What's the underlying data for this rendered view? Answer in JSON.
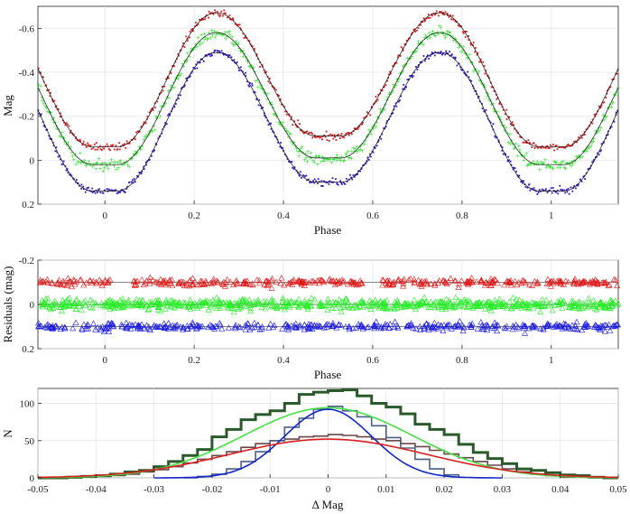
{
  "chart_data": [
    {
      "type": "scatter",
      "panel": "light-curve",
      "xlabel": "Phase",
      "ylabel": "Mag",
      "xlim": [
        -0.15,
        1.15
      ],
      "ylim": [
        0.2,
        -0.7
      ],
      "y_inverted": true,
      "xticks": [
        0,
        0.2,
        0.4,
        0.6,
        0.8,
        1
      ],
      "xtick_labels": [
        "0",
        "0.2",
        "0.4",
        "0.6",
        "0.8",
        "1"
      ],
      "yticks": [
        -0.6,
        -0.4,
        -0.2,
        0,
        0.2
      ],
      "ytick_labels": [
        "-0.6",
        "-0.4",
        "-0.2",
        "0",
        "0.2"
      ],
      "grid": true,
      "model": "eclipsing binary light curve, fitted model drawn as thin black line over each band",
      "series": [
        {
          "name": "red band",
          "color": "#d81818",
          "min_mag": -0.67,
          "primary_min_mag": -0.06,
          "secondary_min_mag": -0.11
        },
        {
          "name": "green band",
          "color": "#22e022",
          "min_mag": -0.58,
          "primary_min_mag": 0.02,
          "secondary_min_mag": -0.01
        },
        {
          "name": "blue band",
          "color": "#3318cc",
          "min_mag": -0.49,
          "primary_min_mag": 0.14,
          "secondary_min_mag": 0.1
        }
      ]
    },
    {
      "type": "scatter",
      "panel": "residuals",
      "xlabel": "Phase",
      "ylabel": "Residuals (mag)",
      "xlim": [
        -0.15,
        1.15
      ],
      "ylim": [
        0.2,
        -0.2
      ],
      "y_inverted": true,
      "xticks": [
        0,
        0.2,
        0.4,
        0.6,
        0.8,
        1
      ],
      "xtick_labels": [
        "0",
        "0.2",
        "0.4",
        "0.6",
        "0.8",
        "1"
      ],
      "yticks": [
        -0.2,
        0,
        0.2
      ],
      "ytick_labels": [
        "-0.2",
        "0",
        "0.2"
      ],
      "grid": true,
      "series": [
        {
          "name": "red residuals",
          "color": "#e01818",
          "offset": -0.1
        },
        {
          "name": "green residuals",
          "color": "#22ee22",
          "offset": 0.0
        },
        {
          "name": "blue residuals",
          "color": "#1a1ae0",
          "offset": 0.1
        }
      ]
    },
    {
      "type": "bar",
      "panel": "residual-histogram",
      "xlabel": "Δ Mag",
      "ylabel": "N",
      "xlim": [
        -0.05,
        0.05
      ],
      "ylim": [
        0,
        120
      ],
      "xticks": [
        -0.05,
        -0.04,
        -0.03,
        -0.02,
        -0.01,
        0,
        0.01,
        0.02,
        0.03,
        0.04,
        0.05
      ],
      "xtick_labels": [
        "-0.05",
        "-0.04",
        "-0.03",
        "-0.02",
        "-0.01",
        "0",
        "0.01",
        "0.02",
        "0.03",
        "0.04",
        "0.05"
      ],
      "yticks": [
        0,
        50,
        100
      ],
      "ytick_labels": [
        "0",
        "50",
        "100"
      ],
      "grid": true,
      "bin_width": 0.0025,
      "histograms": [
        {
          "name": "green band",
          "color": "#2a5a2a",
          "stroke_width": 3,
          "bins": [
            -0.05,
            -0.0475,
            -0.045,
            -0.0425,
            -0.04,
            -0.0375,
            -0.035,
            -0.0325,
            -0.03,
            -0.0275,
            -0.025,
            -0.0225,
            -0.02,
            -0.0175,
            -0.015,
            -0.0125,
            -0.01,
            -0.0075,
            -0.005,
            -0.0025,
            0,
            0.0025,
            0.005,
            0.0075,
            0.01,
            0.0125,
            0.015,
            0.0175,
            0.02,
            0.0225,
            0.025,
            0.0275,
            0.03,
            0.0325,
            0.035,
            0.0375,
            0.04,
            0.0425,
            0.045,
            0.0475
          ],
          "counts": [
            0,
            0,
            1,
            2,
            3,
            5,
            8,
            10,
            15,
            22,
            30,
            38,
            55,
            65,
            78,
            85,
            90,
            100,
            112,
            115,
            117,
            118,
            110,
            100,
            95,
            86,
            72,
            65,
            58,
            45,
            34,
            26,
            19,
            12,
            10,
            7,
            4,
            3,
            1,
            0
          ]
        },
        {
          "name": "blue band",
          "color": "#4a5e8a",
          "stroke_width": 1.6,
          "bins": [
            -0.025,
            -0.0225,
            -0.02,
            -0.0175,
            -0.015,
            -0.0125,
            -0.01,
            -0.0075,
            -0.005,
            -0.0025,
            0,
            0.0025,
            0.005,
            0.0075,
            0.01,
            0.0125,
            0.015,
            0.0175,
            0.02
          ],
          "counts": [
            0,
            2,
            5,
            12,
            22,
            35,
            50,
            68,
            80,
            92,
            96,
            90,
            82,
            70,
            54,
            40,
            25,
            12,
            4
          ]
        },
        {
          "name": "red band",
          "color": "#6a4848",
          "stroke_width": 1.6,
          "bins": [
            -0.045,
            -0.0425,
            -0.04,
            -0.0375,
            -0.035,
            -0.0325,
            -0.03,
            -0.0275,
            -0.025,
            -0.0225,
            -0.02,
            -0.0175,
            -0.015,
            -0.0125,
            -0.01,
            -0.0075,
            -0.005,
            -0.0025,
            0,
            0.0025,
            0.005,
            0.0075,
            0.01,
            0.0125,
            0.015,
            0.0175,
            0.02,
            0.0225,
            0.025,
            0.0275,
            0.03,
            0.0325,
            0.035,
            0.0375,
            0.04
          ],
          "counts": [
            0,
            1,
            2,
            3,
            5,
            8,
            11,
            15,
            20,
            25,
            30,
            35,
            41,
            46,
            50,
            52,
            55,
            56,
            58,
            57,
            55,
            52,
            50,
            46,
            42,
            37,
            32,
            27,
            22,
            17,
            12,
            8,
            5,
            3,
            1
          ]
        }
      ],
      "gaussian_fits": [
        {
          "name": "green fit",
          "color": "#44e044",
          "amplitude": 94,
          "mean": 0.0,
          "sigma": 0.0145
        },
        {
          "name": "blue fit",
          "color": "#1028c8",
          "amplitude": 92,
          "mean": 0.0,
          "sigma": 0.0075
        },
        {
          "name": "red fit",
          "color": "#d82020",
          "amplitude": 52,
          "mean": 0.0,
          "sigma": 0.017
        }
      ]
    }
  ]
}
